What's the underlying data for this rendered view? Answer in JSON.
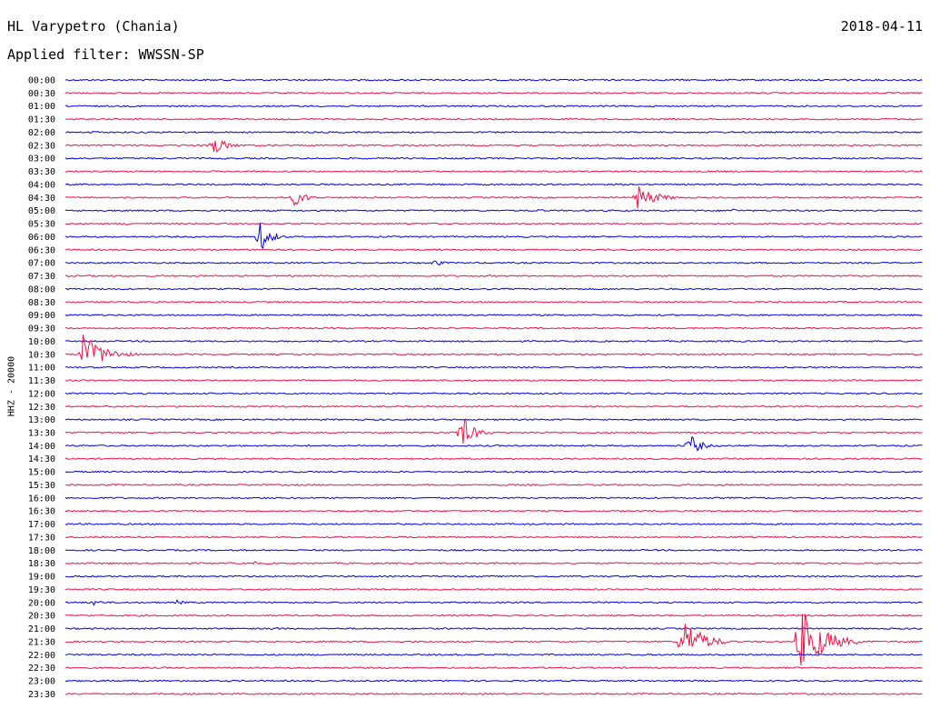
{
  "header": {
    "station": "HL Varypetro (Chania)",
    "date": "2018-04-11",
    "filter": "Applied filter: WWSSN-SP"
  },
  "colors": {
    "line_a": "#0000dd",
    "line_b": "#ee1144"
  },
  "chart_data": {
    "type": "line",
    "title": "HL Varypetro (Chania)",
    "subtitle": "Applied filter: WWSSN-SP",
    "ylabel": "HHZ - 20000",
    "xlabel": "",
    "grid": false,
    "legend": "none",
    "minutes_per_line": 30,
    "x_range_minutes": [
      0,
      30
    ],
    "rows": [
      "00:00",
      "00:30",
      "01:00",
      "01:30",
      "02:00",
      "02:30",
      "03:00",
      "03:30",
      "04:00",
      "04:30",
      "05:00",
      "05:30",
      "06:00",
      "06:30",
      "07:00",
      "07:30",
      "08:00",
      "08:30",
      "09:00",
      "09:30",
      "10:00",
      "10:30",
      "11:00",
      "11:30",
      "12:00",
      "12:30",
      "13:00",
      "13:30",
      "14:00",
      "14:30",
      "15:00",
      "15:30",
      "16:00",
      "16:30",
      "17:00",
      "17:30",
      "18:00",
      "18:30",
      "19:00",
      "19:30",
      "20:00",
      "20:30",
      "21:00",
      "21:30",
      "22:00",
      "22:30",
      "23:00",
      "23:30"
    ],
    "events": [
      {
        "row": "00:00",
        "minute": 27.2,
        "amplitude": 3,
        "duration_min": 0.5
      },
      {
        "row": "01:00",
        "minute": 3.3,
        "amplitude": 2,
        "duration_min": 0.5
      },
      {
        "row": "02:00",
        "minute": 1.0,
        "amplitude": 3,
        "duration_min": 0.5
      },
      {
        "row": "02:00",
        "minute": 4.1,
        "amplitude": 2,
        "duration_min": 0.5
      },
      {
        "row": "02:30",
        "minute": 5.1,
        "amplitude": 14,
        "duration_min": 1.2
      },
      {
        "row": "04:30",
        "minute": 8.0,
        "amplitude": 10,
        "duration_min": 1.2
      },
      {
        "row": "04:30",
        "minute": 20.0,
        "amplitude": 14,
        "duration_min": 1.8
      },
      {
        "row": "05:00",
        "minute": 16.4,
        "amplitude": 3,
        "duration_min": 0.8
      },
      {
        "row": "05:00",
        "minute": 23.3,
        "amplitude": 3,
        "duration_min": 0.8
      },
      {
        "row": "05:30",
        "minute": 2.1,
        "amplitude": 3,
        "duration_min": 0.5
      },
      {
        "row": "06:00",
        "minute": 6.8,
        "amplitude": 18,
        "duration_min": 1.0
      },
      {
        "row": "07:00",
        "minute": 12.9,
        "amplitude": 5,
        "duration_min": 0.8
      },
      {
        "row": "10:30",
        "minute": 0.6,
        "amplitude": 24,
        "duration_min": 2.0
      },
      {
        "row": "13:30",
        "minute": 13.8,
        "amplitude": 22,
        "duration_min": 1.2
      },
      {
        "row": "14:00",
        "minute": 21.8,
        "amplitude": 16,
        "duration_min": 1.0
      },
      {
        "row": "14:30",
        "minute": 12.4,
        "amplitude": 2,
        "duration_min": 0.5
      },
      {
        "row": "16:00",
        "minute": 28.3,
        "amplitude": 2,
        "duration_min": 0.5
      },
      {
        "row": "16:30",
        "minute": 11.4,
        "amplitude": 2,
        "duration_min": 0.5
      },
      {
        "row": "18:30",
        "minute": 1.5,
        "amplitude": 2,
        "duration_min": 0.5
      },
      {
        "row": "18:30",
        "minute": 6.6,
        "amplitude": 3,
        "duration_min": 0.5
      },
      {
        "row": "20:00",
        "minute": 1.0,
        "amplitude": 4,
        "duration_min": 0.8
      },
      {
        "row": "20:00",
        "minute": 3.9,
        "amplitude": 3,
        "duration_min": 0.8
      },
      {
        "row": "21:00",
        "minute": 7.3,
        "amplitude": 4,
        "duration_min": 0.5
      },
      {
        "row": "21:30",
        "minute": 21.6,
        "amplitude": 28,
        "duration_min": 1.8
      },
      {
        "row": "21:30",
        "minute": 25.7,
        "amplitude": 40,
        "duration_min": 2.2
      },
      {
        "row": "23:00",
        "minute": 1.6,
        "amplitude": 3,
        "duration_min": 0.5
      }
    ]
  }
}
